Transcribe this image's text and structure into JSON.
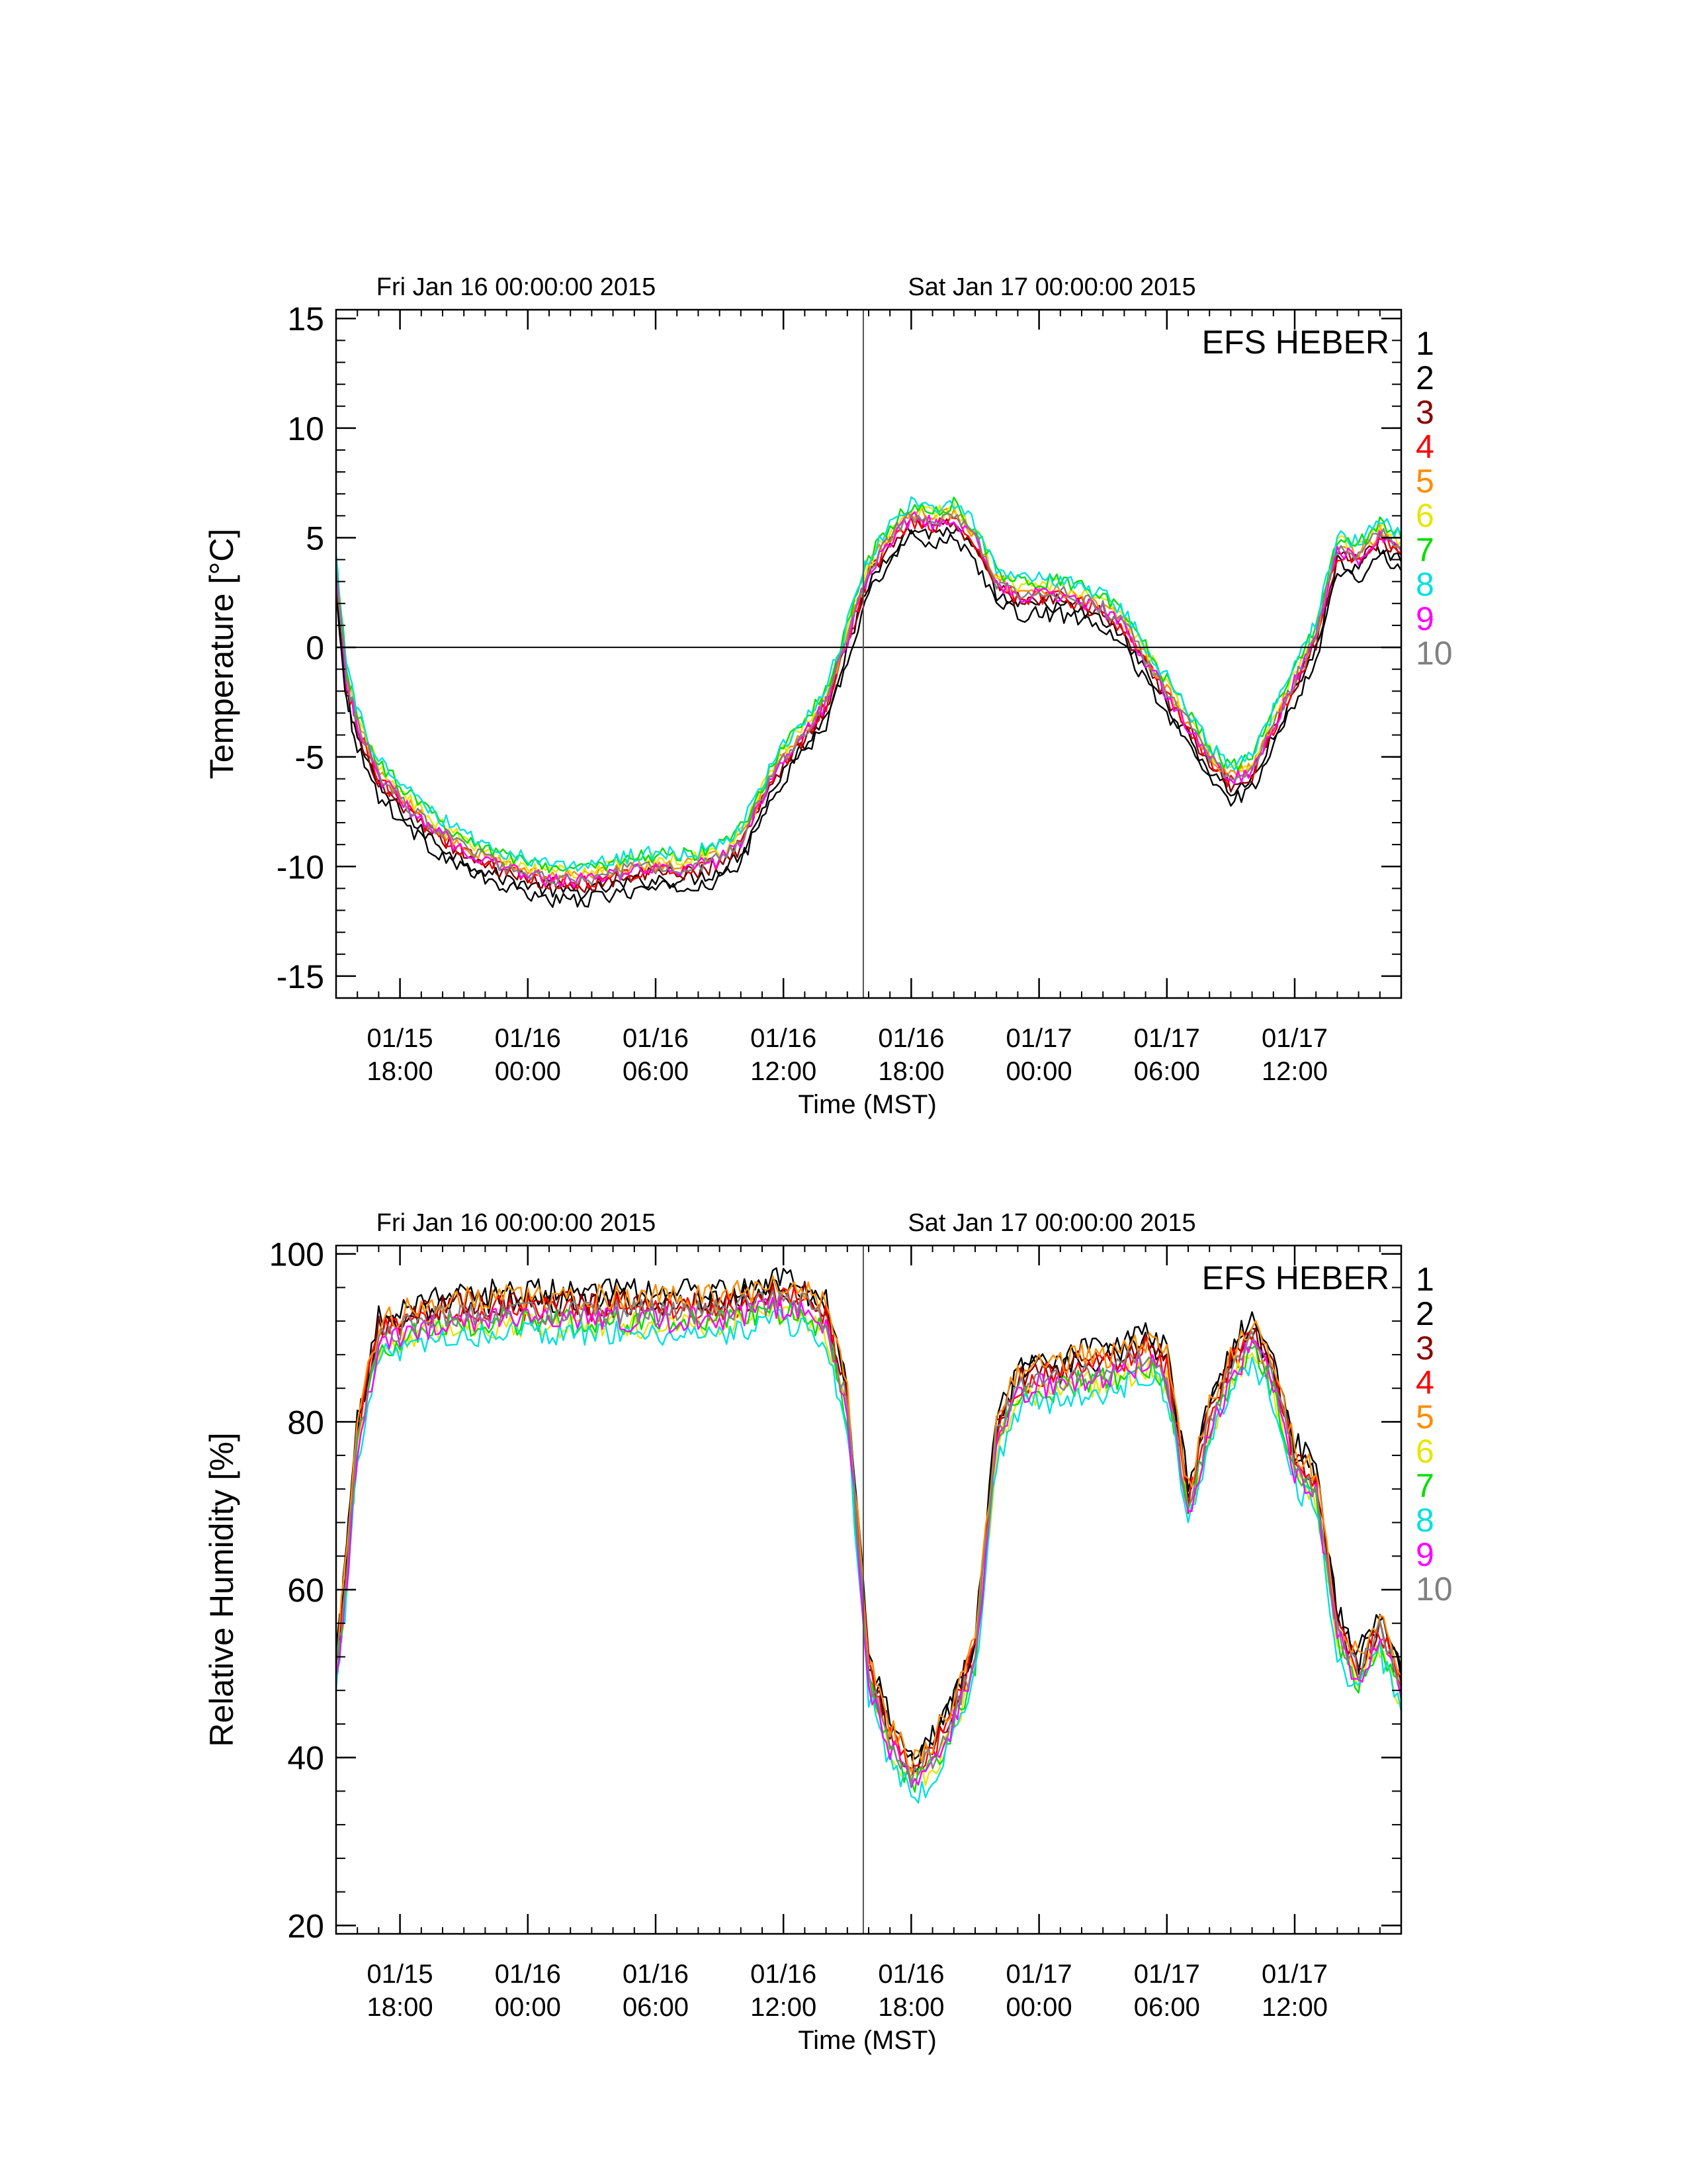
{
  "chart_data": [
    {
      "type": "line",
      "id": "temperature",
      "station_label": "EFS HEBER",
      "top_dates": [
        "Fri Jan 16 00:00:00 2015",
        "Sat Jan 17 00:00:00 2015"
      ],
      "xlabel": "Time (MST)",
      "ylabel": "Temperature [°C]",
      "xlim": [
        "2015-01-15 15:00",
        "2015-01-17 17:00"
      ],
      "ylim": [
        -16,
        15.4
      ],
      "yticks": [
        -15,
        -10,
        -5,
        0,
        5,
        10,
        15
      ],
      "xticks": [
        {
          "t": "2015-01-15 18:00",
          "date": "01/15",
          "time": "18:00"
        },
        {
          "t": "2015-01-16 00:00",
          "date": "01/16",
          "time": "00:00"
        },
        {
          "t": "2015-01-16 06:00",
          "date": "01/16",
          "time": "06:00"
        },
        {
          "t": "2015-01-16 12:00",
          "date": "01/16",
          "time": "12:00"
        },
        {
          "t": "2015-01-16 18:00",
          "date": "01/16",
          "time": "18:00"
        },
        {
          "t": "2015-01-17 00:00",
          "date": "01/17",
          "time": "00:00"
        },
        {
          "t": "2015-01-17 06:00",
          "date": "01/17",
          "time": "06:00"
        },
        {
          "t": "2015-01-17 12:00",
          "date": "01/17",
          "time": "12:00"
        }
      ],
      "vline_t": "2015-01-16 15:45",
      "hline_y": 0,
      "x_hours": [
        0,
        0.5,
        1,
        2,
        3,
        4,
        5,
        6,
        7,
        8,
        9,
        10,
        11,
        12,
        13,
        14,
        15,
        16,
        17,
        18,
        19,
        20,
        21,
        22,
        23,
        24,
        25,
        26,
        27,
        28,
        29,
        30,
        31,
        32,
        33,
        34,
        35,
        36,
        37,
        38,
        39,
        40,
        41,
        42,
        43,
        44,
        45,
        46,
        47,
        48,
        49,
        50
      ],
      "base": [
        3.5,
        -1.5,
        -3.5,
        -5.8,
        -6.8,
        -7.8,
        -8.5,
        -9.1,
        -9.6,
        -10.0,
        -10.2,
        -10.5,
        -10.6,
        -10.5,
        -10.3,
        -10.1,
        -10.0,
        -10.0,
        -9.9,
        -9.6,
        -8.8,
        -6.8,
        -5.0,
        -3.8,
        -2.5,
        0.5,
        3.5,
        5.0,
        6.0,
        5.8,
        6.0,
        5.0,
        3.0,
        2.5,
        2.5,
        2.5,
        2.2,
        1.8,
        1.0,
        -0.5,
        -2.0,
        -3.5,
        -5.0,
        -6.0,
        -5.5,
        -3.5,
        -1.5,
        0.5,
        4.5,
        4.2,
        5.2,
        4.5
      ],
      "series": [
        {
          "name": "1",
          "color": "#000000",
          "offset": -0.6
        },
        {
          "name": "2",
          "color": "#000000",
          "offset": -1.0
        },
        {
          "name": "3",
          "color": "#8b0000",
          "offset": -0.3
        },
        {
          "name": "4",
          "color": "#ff0000",
          "offset": -0.2
        },
        {
          "name": "5",
          "color": "#ff8c00",
          "offset": 0.1
        },
        {
          "name": "6",
          "color": "#e6e600",
          "offset": 0.3
        },
        {
          "name": "7",
          "color": "#00e000",
          "offset": 0.5
        },
        {
          "name": "8",
          "color": "#00e0e0",
          "offset": 0.6
        },
        {
          "name": "9",
          "color": "#ff00ff",
          "offset": -0.1
        },
        {
          "name": "10",
          "color": "#808080",
          "offset": 0.0
        }
      ]
    },
    {
      "type": "line",
      "id": "humidity",
      "station_label": "EFS HEBER",
      "top_dates": [
        "Fri Jan 16 00:00:00 2015",
        "Sat Jan 17 00:00:00 2015"
      ],
      "xlabel": "Time (MST)",
      "ylabel": "Relative Humidity [%]",
      "xlim": [
        "2015-01-15 15:00",
        "2015-01-17 17:00"
      ],
      "ylim": [
        19,
        101
      ],
      "yticks": [
        20,
        40,
        60,
        80,
        100
      ],
      "xticks": [
        {
          "t": "2015-01-15 18:00",
          "date": "01/15",
          "time": "18:00"
        },
        {
          "t": "2015-01-16 00:00",
          "date": "01/16",
          "time": "00:00"
        },
        {
          "t": "2015-01-16 06:00",
          "date": "01/16",
          "time": "06:00"
        },
        {
          "t": "2015-01-16 12:00",
          "date": "01/16",
          "time": "12:00"
        },
        {
          "t": "2015-01-16 18:00",
          "date": "01/16",
          "time": "18:00"
        },
        {
          "t": "2015-01-17 00:00",
          "date": "01/17",
          "time": "00:00"
        },
        {
          "t": "2015-01-17 06:00",
          "date": "01/17",
          "time": "06:00"
        },
        {
          "t": "2015-01-17 12:00",
          "date": "01/17",
          "time": "12:00"
        }
      ],
      "vline_t": "2015-01-16 15:45",
      "x_hours": [
        0,
        0.5,
        1,
        2,
        3,
        4,
        5,
        6,
        7,
        8,
        9,
        10,
        11,
        12,
        13,
        14,
        15,
        16,
        17,
        18,
        19,
        20,
        21,
        22,
        23,
        24,
        25,
        26,
        27,
        28,
        29,
        30,
        31,
        32,
        33,
        34,
        35,
        36,
        37,
        38,
        39,
        40,
        41,
        42,
        43,
        44,
        45,
        46,
        47,
        48,
        49,
        50
      ],
      "base": [
        50,
        62,
        78,
        90,
        91,
        92,
        92.5,
        93,
        93,
        93,
        93,
        93,
        93,
        93,
        93,
        93,
        93,
        93,
        93,
        93,
        93.5,
        94,
        94.5,
        94,
        92,
        82,
        50,
        42,
        38,
        40,
        45,
        52,
        78,
        84,
        85,
        85,
        86,
        86,
        87,
        88,
        86,
        70,
        80,
        86,
        90,
        85,
        75,
        72,
        55,
        50,
        55,
        48
      ],
      "series": [
        {
          "name": "1",
          "color": "#000000",
          "offset": 1.5
        },
        {
          "name": "2",
          "color": "#000000",
          "offset": 2.5
        },
        {
          "name": "3",
          "color": "#8b0000",
          "offset": 1.0
        },
        {
          "name": "4",
          "color": "#ff0000",
          "offset": 0.5
        },
        {
          "name": "5",
          "color": "#ff8c00",
          "offset": 1.8
        },
        {
          "name": "6",
          "color": "#e6e600",
          "offset": -1.5
        },
        {
          "name": "7",
          "color": "#00e000",
          "offset": -1.2
        },
        {
          "name": "8",
          "color": "#00e0e0",
          "offset": -2.5
        },
        {
          "name": "9",
          "color": "#ff00ff",
          "offset": -0.8
        },
        {
          "name": "10",
          "color": "#808080",
          "offset": 0.0
        }
      ]
    }
  ]
}
